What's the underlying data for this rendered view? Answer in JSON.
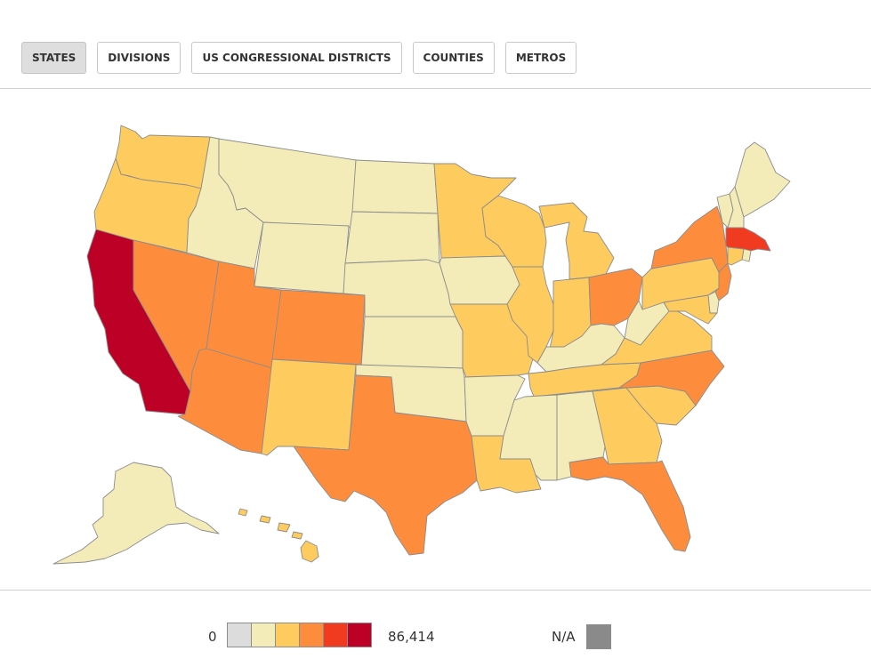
{
  "tabs": [
    {
      "label": "STATES",
      "active": true
    },
    {
      "label": "DIVISIONS",
      "active": false
    },
    {
      "label": "US CONGRESSIONAL DISTRICTS",
      "active": false
    },
    {
      "label": "COUNTIES",
      "active": false
    },
    {
      "label": "METROS",
      "active": false
    }
  ],
  "legend": {
    "min_label": "0",
    "max_label": "86,414",
    "na_label": "N/A",
    "na_color": "#8a8a8a",
    "bins": [
      "#dcdcdc",
      "#f3ecb9",
      "#fecb5e",
      "#fd8c3c",
      "#f03b20",
      "#bd0026"
    ]
  },
  "map": {
    "states": [
      {
        "id": "WA",
        "bin": 2
      },
      {
        "id": "OR",
        "bin": 2
      },
      {
        "id": "CA",
        "bin": 5
      },
      {
        "id": "ID",
        "bin": 1
      },
      {
        "id": "NV",
        "bin": 3
      },
      {
        "id": "MT",
        "bin": 1
      },
      {
        "id": "WY",
        "bin": 1
      },
      {
        "id": "UT",
        "bin": 3
      },
      {
        "id": "AZ",
        "bin": 3
      },
      {
        "id": "CO",
        "bin": 3
      },
      {
        "id": "NM",
        "bin": 2
      },
      {
        "id": "ND",
        "bin": 1
      },
      {
        "id": "SD",
        "bin": 1
      },
      {
        "id": "NE",
        "bin": 1
      },
      {
        "id": "KS",
        "bin": 1
      },
      {
        "id": "OK",
        "bin": 1
      },
      {
        "id": "TX",
        "bin": 3
      },
      {
        "id": "MN",
        "bin": 2
      },
      {
        "id": "IA",
        "bin": 1
      },
      {
        "id": "MO",
        "bin": 2
      },
      {
        "id": "AR",
        "bin": 1
      },
      {
        "id": "LA",
        "bin": 2
      },
      {
        "id": "WI",
        "bin": 2
      },
      {
        "id": "IL",
        "bin": 2
      },
      {
        "id": "MS",
        "bin": 1
      },
      {
        "id": "MI",
        "bin": 2
      },
      {
        "id": "IN",
        "bin": 2
      },
      {
        "id": "KY",
        "bin": 1
      },
      {
        "id": "TN",
        "bin": 2
      },
      {
        "id": "AL",
        "bin": 1
      },
      {
        "id": "OH",
        "bin": 3
      },
      {
        "id": "WV",
        "bin": 1
      },
      {
        "id": "GA",
        "bin": 2
      },
      {
        "id": "FL",
        "bin": 3
      },
      {
        "id": "SC",
        "bin": 2
      },
      {
        "id": "NC",
        "bin": 3
      },
      {
        "id": "VA",
        "bin": 2
      },
      {
        "id": "PA",
        "bin": 2
      },
      {
        "id": "NY",
        "bin": 3
      },
      {
        "id": "MD",
        "bin": 2
      },
      {
        "id": "DE",
        "bin": 1
      },
      {
        "id": "NJ",
        "bin": 3
      },
      {
        "id": "CT",
        "bin": 2
      },
      {
        "id": "RI",
        "bin": 1
      },
      {
        "id": "MA",
        "bin": 4
      },
      {
        "id": "VT",
        "bin": 1
      },
      {
        "id": "NH",
        "bin": 1
      },
      {
        "id": "ME",
        "bin": 1
      },
      {
        "id": "AK",
        "bin": 1
      },
      {
        "id": "HI",
        "bin": 2
      }
    ]
  }
}
